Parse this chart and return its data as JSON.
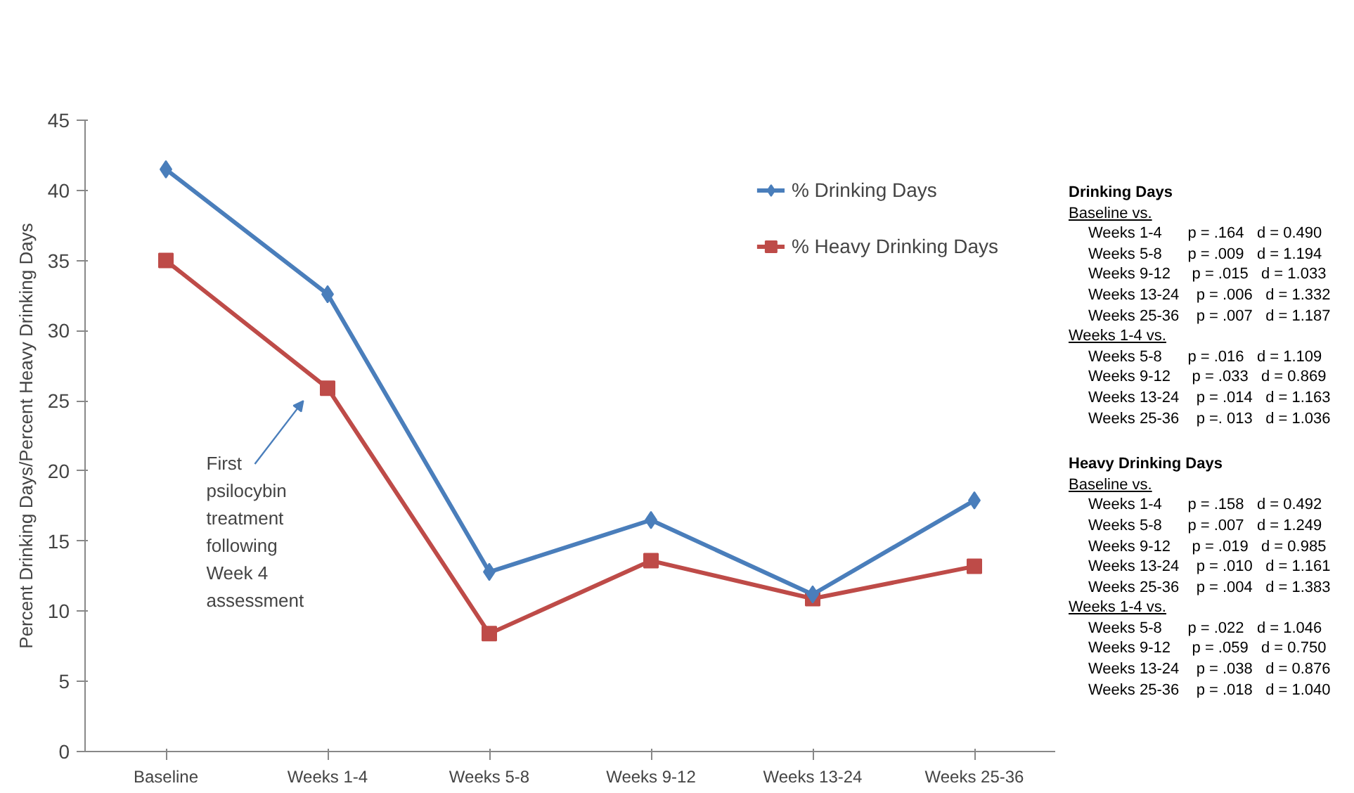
{
  "chart_data": {
    "type": "line",
    "categories": [
      "Baseline",
      "Weeks 1-4",
      "Weeks 5-8",
      "Weeks 9-12",
      "Weeks 13-24",
      "Weeks 25-36"
    ],
    "ylabel": "Percent Drinking Days/Percent Heavy Drinking Days",
    "ylim": [
      0,
      45
    ],
    "yticks": [
      0,
      5,
      10,
      15,
      20,
      25,
      30,
      35,
      40,
      45
    ],
    "grid": false,
    "legend": "top right",
    "line_style": "solid",
    "series": [
      {
        "name": "% Drinking Days",
        "color": "#4a7ebb",
        "marker": "diamond",
        "values": [
          41.5,
          32.6,
          12.8,
          16.5,
          11.2,
          17.9
        ]
      },
      {
        "name": "% Heavy Drinking Days",
        "color": "#be4b48",
        "marker": "square",
        "values": [
          35.0,
          25.9,
          8.4,
          13.6,
          10.9,
          13.2
        ]
      }
    ],
    "annotations": [
      "First psilocybin treatment following Week 4 assessment",
      "Drinking Days",
      "Baseline vs.",
      "Weeks 1-4      p = .164   d = 0.490",
      "Weeks 5-8      p = .009   d = 1.194",
      "Weeks 9-12     p = .015   d = 1.033",
      "Weeks 13-24    p = .006   d = 1.332",
      "Weeks 25-36    p = .007   d = 1.187",
      "Weeks 1-4 vs.",
      "Weeks 5-8      p = .016   d = 1.109",
      "Weeks 9-12     p = .033   d = 0.869",
      "Weeks 13-24    p = .014   d = 1.163",
      "Weeks 25-36    p =. 013   d = 1.036",
      "Heavy Drinking Days",
      "Baseline vs.",
      "Weeks 1-4      p = .158   d = 0.492",
      "Weeks 5-8      p = .007   d = 1.249",
      "Weeks 9-12     p = .019   d = 0.985",
      "Weeks 13-24    p = .010   d = 1.161",
      "Weeks 25-36    p = .004   d = 1.383",
      "Weeks 1-4 vs.",
      "Weeks 5-8      p = .022   d = 1.046",
      "Weeks 9-12     p = .059   d = 0.750",
      "Weeks 13-24    p = .038   d = 0.876",
      "Weeks 25-36    p = .018   d = 1.040"
    ]
  }
}
